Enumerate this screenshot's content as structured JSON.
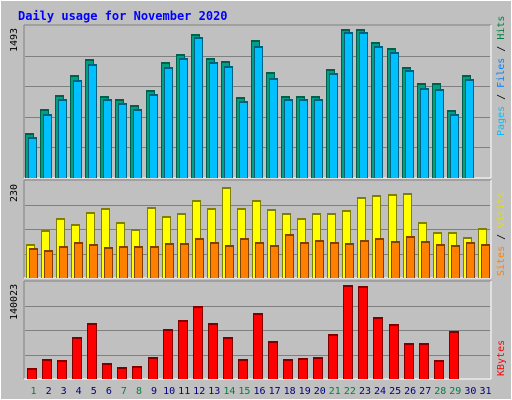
{
  "chart_data": [
    {
      "type": "bar",
      "title": "Daily usage for November 2020",
      "ylabel_top": "1493",
      "legend": [
        "Pages",
        "Files",
        "Hits"
      ],
      "legend_separator": " / ",
      "categories": [
        "1",
        "2",
        "3",
        "4",
        "5",
        "6",
        "7",
        "8",
        "9",
        "10",
        "11",
        "12",
        "13",
        "14",
        "15",
        "16",
        "17",
        "18",
        "19",
        "20",
        "21",
        "22",
        "23",
        "24",
        "25",
        "26",
        "27",
        "28",
        "29",
        "30",
        "31"
      ],
      "weekend_days": [
        "1",
        "7",
        "8",
        "14",
        "15",
        "21",
        "22",
        "28",
        "29"
      ],
      "ymax": 1493,
      "series": [
        {
          "name": "Hits",
          "values": [
            450,
            690,
            830,
            1030,
            1190,
            820,
            790,
            730,
            880,
            1160,
            1240,
            1440,
            1200,
            1170,
            810,
            1380,
            1060,
            820,
            820,
            820,
            1090,
            1490,
            1490,
            1360,
            1300,
            1110,
            950,
            950,
            680,
            1030,
            0
          ]
        },
        {
          "name": "Files",
          "values": [
            410,
            640,
            790,
            980,
            1140,
            790,
            750,
            690,
            840,
            1110,
            1200,
            1410,
            1160,
            1120,
            770,
            1320,
            1000,
            790,
            790,
            790,
            1050,
            1460,
            1460,
            1320,
            1260,
            1080,
            900,
            890,
            640,
            990,
            0
          ]
        }
      ]
    },
    {
      "type": "bar",
      "ylabel_top": "230",
      "legend": [
        "Sites",
        "Visits"
      ],
      "legend_separator": " / ",
      "ymax": 230,
      "series": [
        {
          "name": "Visits",
          "values": [
            82,
            118,
            147,
            133,
            162,
            172,
            138,
            120,
            173,
            152,
            158,
            190,
            172,
            222,
            172,
            190,
            170,
            160,
            147,
            160,
            158,
            167,
            197,
            202,
            205,
            209,
            138,
            112,
            112,
            100,
            123
          ]
        },
        {
          "name": "Sites",
          "values": [
            74,
            68,
            78,
            88,
            82,
            75,
            78,
            78,
            78,
            85,
            85,
            97,
            88,
            80,
            97,
            88,
            80,
            108,
            88,
            92,
            88,
            85,
            92,
            97,
            90,
            102,
            90,
            82,
            80,
            88,
            82
          ]
        }
      ]
    },
    {
      "type": "bar",
      "ylabel_top": "140023",
      "legend": [
        "KBytes"
      ],
      "ymax": 140023,
      "series": [
        {
          "name": "KBytes",
          "values": [
            16000,
            30000,
            28000,
            62000,
            84000,
            24000,
            18000,
            20000,
            33000,
            74000,
            88000,
            108000,
            84000,
            62000,
            30000,
            98000,
            57000,
            30000,
            32000,
            33000,
            67000,
            140023,
            138000,
            92000,
            82000,
            53000,
            54000,
            28000,
            72000,
            0,
            0
          ]
        }
      ]
    }
  ],
  "colors": {
    "background": "#c0c0c0",
    "frame": "#ffffff",
    "title": "#0000ff",
    "grid": "#808080",
    "hits": "#00a080",
    "hits_shadow": "#006050",
    "files": "#00c0ff",
    "files_shadow": "#006080",
    "visits": "#ffff00",
    "visits_shadow": "#808000",
    "sites": "#ff8000",
    "sites_shadow": "#804000",
    "kbytes": "#ff0000",
    "kbytes_shadow": "#800000",
    "day_weekday": "#000080",
    "day_weekend": "#008040",
    "legend_hits": "#008040",
    "legend_files": "#0080ff",
    "legend_pages": "#00c0ff",
    "legend_visits": "#e0e000",
    "legend_sites": "#ff8000",
    "legend_kbytes": "#ff0000"
  }
}
